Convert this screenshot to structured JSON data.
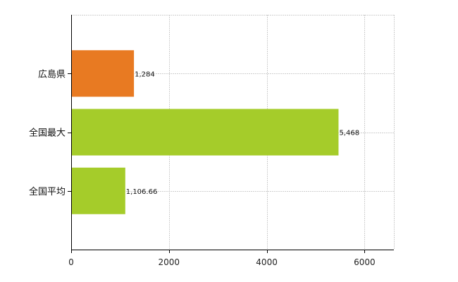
{
  "chart_data": {
    "type": "bar",
    "orientation": "horizontal",
    "categories": [
      "広島県",
      "全国最大",
      "全国平均"
    ],
    "values": [
      1284,
      5468,
      1106.66
    ],
    "value_labels": [
      "1,284",
      "5,468",
      "1,106.66"
    ],
    "bar_colors": [
      "#E87A22",
      "#A5CC2A",
      "#A5CC2A"
    ],
    "xlim": [
      0,
      6600
    ],
    "x_ticks": [
      0,
      2000,
      4000,
      6000
    ],
    "x_tick_labels": [
      "0",
      "2000",
      "4000",
      "6000"
    ],
    "grid": true,
    "legend": false
  }
}
